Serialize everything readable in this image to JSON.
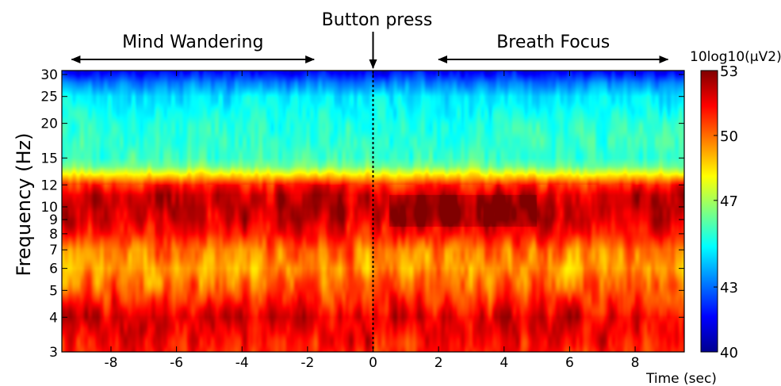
{
  "chart_data": {
    "type": "heatmap",
    "title": "",
    "xlabel": "Time (sec)",
    "ylabel": "Frequency (Hz)",
    "xlim": [
      -9.5,
      9.5
    ],
    "ylim": [
      3,
      31
    ],
    "y_scale": "log",
    "x_ticks": [
      -8,
      -6,
      -4,
      -2,
      0,
      2,
      4,
      6,
      8
    ],
    "y_ticks": [
      3,
      4,
      5,
      6,
      7,
      8,
      9,
      10,
      12,
      15,
      20,
      25,
      30
    ],
    "colorbar": {
      "label": "10log10(μV2)",
      "min": 40,
      "max": 53,
      "ticks": [
        40,
        43,
        47,
        50,
        53
      ],
      "colormap": "jet"
    },
    "annotations": {
      "mind_wandering": {
        "text": "Mind Wandering",
        "x_range": [
          -9.2,
          -1.8
        ]
      },
      "button_press": {
        "text": "Button press",
        "x": 0
      },
      "breath_focus": {
        "text": "Breath Focus",
        "x_range": [
          2.0,
          9.0
        ]
      }
    },
    "band_profile": {
      "frequency_hz": [
        3,
        3.5,
        4,
        5,
        6,
        7,
        8,
        9,
        10,
        11,
        12,
        13,
        14,
        15,
        20,
        25,
        28,
        30,
        31
      ],
      "power_db": [
        51.0,
        51.5,
        51.8,
        50.3,
        49.4,
        50.0,
        51.3,
        52.0,
        52.2,
        52.0,
        51.0,
        48.5,
        46.4,
        45.7,
        45.3,
        44.6,
        43.2,
        42.0,
        41.5
      ]
    },
    "condition_offsets": {
      "alpha_9_10hz_after_press": 0.7,
      "note_range_time": [
        0.5,
        5.0
      ]
    }
  }
}
